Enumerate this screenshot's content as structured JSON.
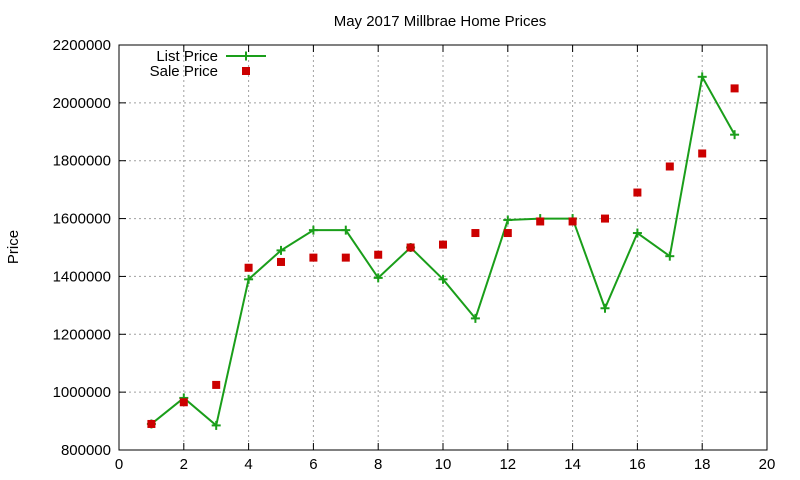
{
  "chart_data": {
    "type": "line",
    "title": "May 2017 Millbrae Home Prices",
    "xlabel": "",
    "ylabel": "Price",
    "xlim": [
      0,
      20
    ],
    "ylim": [
      800000,
      2200000
    ],
    "xticks": [
      0,
      2,
      4,
      6,
      8,
      10,
      12,
      14,
      16,
      18,
      20
    ],
    "yticks": [
      800000,
      1000000,
      1200000,
      1400000,
      1600000,
      1800000,
      2000000,
      2200000
    ],
    "grid": true,
    "legend_position": "top-left",
    "series": [
      {
        "name": "List Price",
        "style": "line-with-plus-markers",
        "color": "#1a9e1a",
        "x": [
          1,
          2,
          3,
          4,
          5,
          6,
          7,
          8,
          9,
          10,
          11,
          12,
          13,
          14,
          15,
          16,
          17,
          18,
          19
        ],
        "y": [
          890000,
          980000,
          885000,
          1390000,
          1490000,
          1560000,
          1560000,
          1395000,
          1500000,
          1390000,
          1255000,
          1595000,
          1600000,
          1600000,
          1290000,
          1550000,
          1470000,
          2090000,
          1890000
        ]
      },
      {
        "name": "Sale Price",
        "style": "square-markers",
        "color": "#cc0000",
        "x": [
          1,
          2,
          3,
          4,
          5,
          6,
          7,
          8,
          9,
          10,
          11,
          12,
          13,
          14,
          15,
          16,
          17,
          18,
          19
        ],
        "y": [
          890000,
          965000,
          1025000,
          1430000,
          1450000,
          1465000,
          1465000,
          1475000,
          1500000,
          1510000,
          1550000,
          1550000,
          1590000,
          1590000,
          1600000,
          1690000,
          1780000,
          1825000,
          2050000
        ]
      }
    ]
  }
}
